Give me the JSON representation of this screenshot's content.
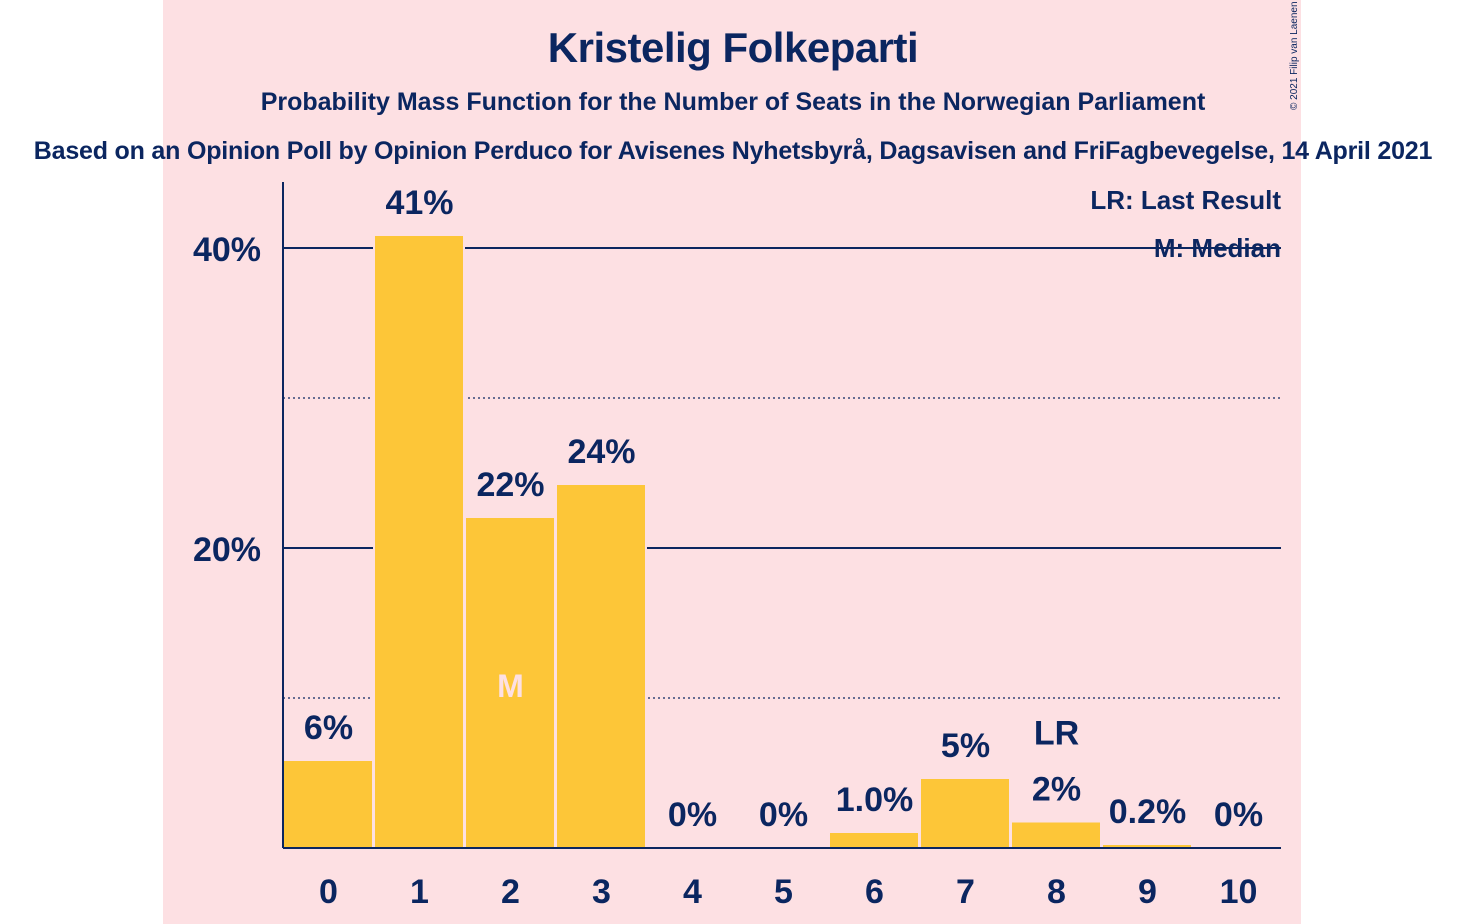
{
  "title": "Kristelig Folkeparti",
  "subtitle": "Probability Mass Function for the Number of Seats in the Norwegian Parliament",
  "subtitle2": "Based on an Opinion Poll by Opinion Perduco for Avisenes Nyhetsbyrå, Dagsavisen and FriFagbevegelse, 14 April 2021",
  "copyright": "© 2021 Filip van Laenen",
  "legend": {
    "last_result": "LR: Last Result",
    "median": "M: Median"
  },
  "colors": {
    "bar": "#fdc638",
    "text": "#0b2660",
    "background": "#fde0e3",
    "median_marker": "#fde0e3"
  },
  "chart_data": {
    "type": "bar",
    "categories": [
      "0",
      "1",
      "2",
      "3",
      "4",
      "5",
      "6",
      "7",
      "8",
      "9",
      "10"
    ],
    "values": [
      5.8,
      40.8,
      22.0,
      24.2,
      0,
      0,
      1.0,
      4.6,
      1.7,
      0.2,
      0
    ],
    "data_labels": [
      "6%",
      "41%",
      "22%",
      "24%",
      "0%",
      "0%",
      "1.0%",
      "5%",
      "2%",
      "0.2%",
      "0%"
    ],
    "ylim": [
      0,
      44
    ],
    "y_ticks": [
      {
        "value": 20,
        "label": "20%"
      },
      {
        "value": 40,
        "label": "40%"
      }
    ],
    "minor_gridlines": [
      10,
      30
    ],
    "median": {
      "category": "2",
      "marker": "M"
    },
    "last_result": {
      "category": "8",
      "marker": "LR"
    },
    "legend_position": "top-right"
  }
}
